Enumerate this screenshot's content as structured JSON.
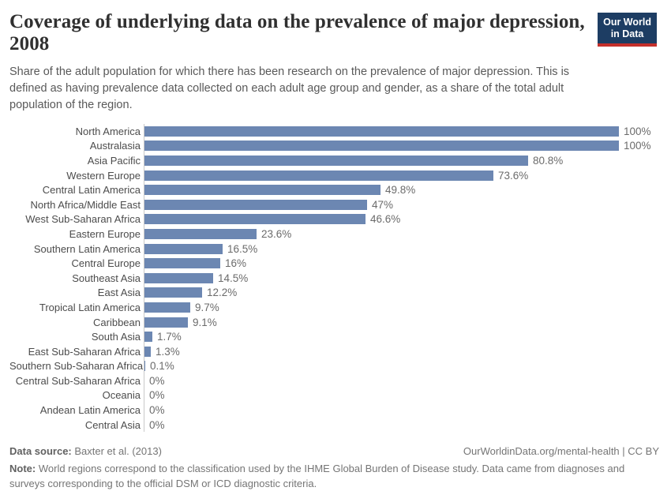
{
  "header": {
    "title_line1": "Coverage of underlying data on the prevalence of major depression,",
    "title_line2": "2008",
    "subtitle": "Share of the adult population for which there has been research on the prevalence of major depression. This is defined as having prevalence data collected on each adult age group and gender, as a share of the total adult population of the region.",
    "logo": {
      "line1": "Our World",
      "line2": "in Data"
    }
  },
  "chart_data": {
    "type": "bar",
    "orientation": "horizontal",
    "title": "Coverage of underlying data on the prevalence of major depression, 2008",
    "categories": [
      "North America",
      "Australasia",
      "Asia Pacific",
      "Western Europe",
      "Central Latin America",
      "North Africa/Middle East",
      "West Sub-Saharan Africa",
      "Eastern Europe",
      "Southern Latin America",
      "Central Europe",
      "Southeast Asia",
      "East Asia",
      "Tropical Latin America",
      "Caribbean",
      "South Asia",
      "East Sub-Saharan Africa",
      "Southern Sub-Saharan Africa",
      "Central Sub-Saharan Africa",
      "Oceania",
      "Andean Latin America",
      "Central Asia"
    ],
    "values": [
      100,
      100,
      80.8,
      73.6,
      49.8,
      47,
      46.6,
      23.6,
      16.5,
      16,
      14.5,
      12.2,
      9.7,
      9.1,
      1.7,
      1.3,
      0.1,
      0,
      0,
      0,
      0
    ],
    "value_labels": [
      "100%",
      "100%",
      "80.8%",
      "73.6%",
      "49.8%",
      "47%",
      "46.6%",
      "23.6%",
      "16.5%",
      "16%",
      "14.5%",
      "12.2%",
      "9.7%",
      "9.1%",
      "1.7%",
      "1.3%",
      "0.1%",
      "0%",
      "0%",
      "0%",
      "0%"
    ],
    "unit": "%",
    "xlim": [
      0,
      100
    ],
    "grid": false,
    "legend": "none",
    "bar_color": "#6c87b2"
  },
  "footer": {
    "data_source_label": "Data source:",
    "data_source": "Baxter et al. (2013)",
    "attribution": "OurWorldinData.org/mental-health | CC BY",
    "note_label": "Note:",
    "note": "World regions correspond to the classification used by the IHME Global Burden of Disease study. Data came from diagnoses and surveys corresponding to the official DSM or ICD diagnostic criteria."
  },
  "colors": {
    "bar": "#6c87b2",
    "logo_navy": "#1d3d63",
    "logo_red": "#c4302b",
    "axis_line": "#c9c9c9",
    "title_text": "#303030",
    "body_text": "#595959"
  }
}
